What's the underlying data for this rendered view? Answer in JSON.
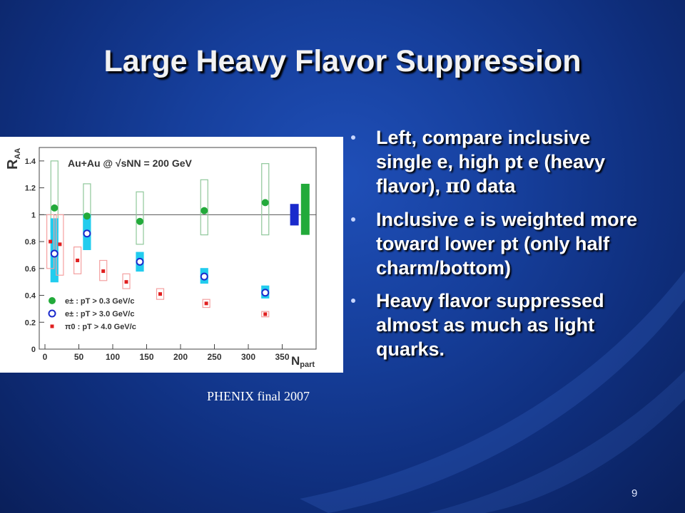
{
  "slide": {
    "title": "Large Heavy Flavor Suppression",
    "caption": "PHENIX final 2007",
    "page_number": "9",
    "bullets": [
      {
        "pre": "Left, compare inclusive single e, high pt e (heavy flavor), ",
        "symbol": "π",
        "post": "0 data"
      },
      {
        "pre": "Inclusive e is weighted more toward lower pt (only half charm/bottom)",
        "symbol": "",
        "post": ""
      },
      {
        "pre": "Heavy flavor suppressed almost as much as light quarks.",
        "symbol": "",
        "post": ""
      }
    ]
  },
  "chart_data": {
    "type": "scatter",
    "annotation": "Au+Au @ √sNN = 200 GeV",
    "ylabel": "R",
    "ylabel_sub": "AA",
    "xlabel": "N",
    "xlabel_sub": "part",
    "xlim": [
      0,
      400
    ],
    "ylim": [
      0,
      1.5
    ],
    "x_ticks": [
      "0",
      "50",
      "100",
      "150",
      "200",
      "250",
      "300",
      "350"
    ],
    "y_ticks": [
      "0",
      "0.2",
      "0.4",
      "0.6",
      "0.8",
      "1",
      "1.2",
      "1.4"
    ],
    "reference_line": 1,
    "colors": {
      "green": "#22aa3a",
      "blue": "#1a2acc",
      "red": "#e02020",
      "cyan": "#22ccee",
      "green_box": "#8fc79a",
      "red_box": "#f4a0a0"
    },
    "series": [
      {
        "legend": "e± : pT > 0.3 GeV/c",
        "marker": "filled-circle",
        "color": "green",
        "points": [
          {
            "x": 14,
            "y": 1.05,
            "syst": [
              0.87,
              1.4
            ]
          },
          {
            "x": 62,
            "y": 0.99,
            "syst": [
              0.85,
              1.23
            ]
          },
          {
            "x": 140,
            "y": 0.95,
            "syst": [
              0.78,
              1.17
            ]
          },
          {
            "x": 235,
            "y": 1.03,
            "syst": [
              0.85,
              1.26
            ]
          },
          {
            "x": 325,
            "y": 1.09,
            "syst": [
              0.85,
              1.38
            ]
          }
        ]
      },
      {
        "legend": "e± : pT > 3.0 GeV/c",
        "marker": "open-circle",
        "color": "blue",
        "points": [
          {
            "x": 14,
            "y": 0.71,
            "syst": [
              0.5,
              0.97
            ]
          },
          {
            "x": 62,
            "y": 0.86,
            "syst": [
              0.74,
              1.0
            ]
          },
          {
            "x": 140,
            "y": 0.65,
            "syst": [
              0.58,
              0.72
            ]
          },
          {
            "x": 235,
            "y": 0.54,
            "syst": [
              0.49,
              0.6
            ]
          },
          {
            "x": 325,
            "y": 0.42,
            "syst": [
              0.38,
              0.47
            ]
          }
        ]
      },
      {
        "legend": "π0 : pT > 4.0 GeV/c",
        "marker": "filled-square",
        "color": "red",
        "points": [
          {
            "x": 8,
            "y": 0.8,
            "syst": [
              0.6,
              1.0
            ]
          },
          {
            "x": 22,
            "y": 0.78,
            "syst": [
              0.55,
              1.0
            ]
          },
          {
            "x": 48,
            "y": 0.66,
            "syst": [
              0.56,
              0.76
            ]
          },
          {
            "x": 86,
            "y": 0.58,
            "syst": [
              0.51,
              0.66
            ]
          },
          {
            "x": 120,
            "y": 0.5,
            "syst": [
              0.45,
              0.56
            ]
          },
          {
            "x": 170,
            "y": 0.41,
            "syst": [
              0.37,
              0.45
            ]
          },
          {
            "x": 238,
            "y": 0.34,
            "syst": [
              0.31,
              0.37
            ]
          },
          {
            "x": 325,
            "y": 0.26,
            "syst": [
              0.24,
              0.28
            ]
          }
        ]
      }
    ],
    "normalization_bars": [
      {
        "x": 368,
        "ymin": 0.92,
        "ymax": 1.08,
        "color": "blue"
      },
      {
        "x": 384,
        "ymin": 0.85,
        "ymax": 1.23,
        "color": "green"
      }
    ]
  }
}
